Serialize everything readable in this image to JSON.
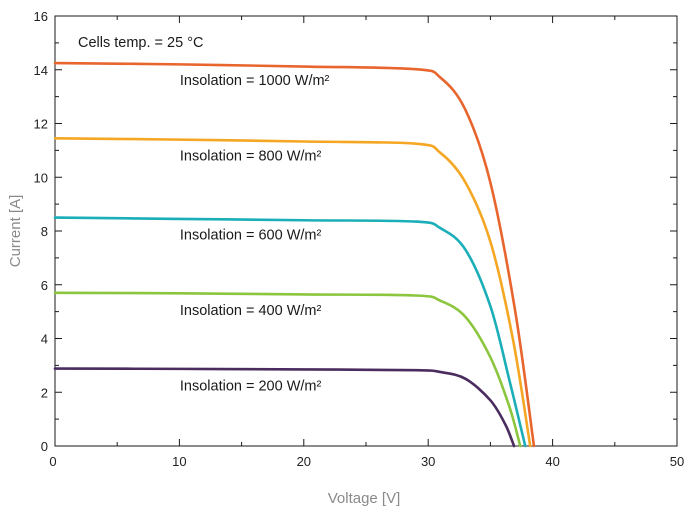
{
  "chart_data": {
    "type": "line",
    "xlabel": "Voltage [V]",
    "ylabel": "Current [A]",
    "xlim": [
      0,
      50
    ],
    "ylim": [
      0,
      16
    ],
    "x_ticks": [
      0,
      10,
      20,
      30,
      40,
      50
    ],
    "y_ticks": [
      0,
      2,
      4,
      6,
      8,
      10,
      12,
      14,
      16
    ],
    "grid": false,
    "annotations": {
      "temperature": "Cells temp. = 25 °C"
    },
    "series": [
      {
        "name": "Insolation = 1000 W/m²",
        "color": "#e8652e",
        "points": [
          [
            0,
            14.25
          ],
          [
            10,
            14.2
          ],
          [
            20,
            14.12
          ],
          [
            29,
            14.02
          ],
          [
            31,
            13.7
          ],
          [
            33,
            12.5
          ],
          [
            35,
            9.8
          ],
          [
            37,
            5.0
          ],
          [
            38.5,
            0
          ]
        ]
      },
      {
        "name": "Insolation = 800 W/m²",
        "color": "#f5a623",
        "points": [
          [
            0,
            11.45
          ],
          [
            10,
            11.4
          ],
          [
            20,
            11.33
          ],
          [
            29,
            11.25
          ],
          [
            31,
            10.9
          ],
          [
            33,
            9.8
          ],
          [
            35,
            7.6
          ],
          [
            36.8,
            4.0
          ],
          [
            38.2,
            0
          ]
        ]
      },
      {
        "name": "Insolation = 600 W/m²",
        "color": "#1aaeb8",
        "points": [
          [
            0,
            8.5
          ],
          [
            10,
            8.45
          ],
          [
            20,
            8.4
          ],
          [
            29,
            8.35
          ],
          [
            31,
            8.1
          ],
          [
            33,
            7.3
          ],
          [
            35,
            5.2
          ],
          [
            36.5,
            2.5
          ],
          [
            37.8,
            0
          ]
        ]
      },
      {
        "name": "Insolation = 400 W/m²",
        "color": "#8cc63f",
        "points": [
          [
            0,
            5.7
          ],
          [
            10,
            5.68
          ],
          [
            20,
            5.64
          ],
          [
            29,
            5.6
          ],
          [
            31,
            5.4
          ],
          [
            33,
            4.8
          ],
          [
            35,
            3.3
          ],
          [
            36.5,
            1.5
          ],
          [
            37.4,
            0
          ]
        ]
      },
      {
        "name": "Insolation = 200 W/m²",
        "color": "#4a2c5e",
        "points": [
          [
            0,
            2.88
          ],
          [
            10,
            2.87
          ],
          [
            20,
            2.85
          ],
          [
            29,
            2.82
          ],
          [
            31,
            2.75
          ],
          [
            33,
            2.5
          ],
          [
            35,
            1.7
          ],
          [
            36.2,
            0.8
          ],
          [
            36.9,
            0
          ]
        ]
      }
    ]
  }
}
